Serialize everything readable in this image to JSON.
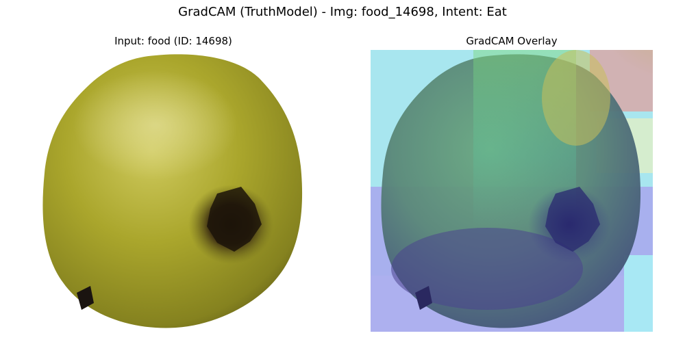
{
  "figure": {
    "title": "GradCAM (TruthModel) - Img: food_14698, Intent: Eat"
  },
  "panels": [
    {
      "title": "Input: food (ID: 14698)",
      "image": "yellow-fruit-photo"
    },
    {
      "title": "GradCAM Overlay",
      "image": "gradcam-heatmap-overlay"
    }
  ],
  "colors": {
    "fruit_body": "#a7a62a",
    "fruit_highlight": "#c9c65a",
    "fruit_shadow": "#6e6a1c",
    "blossom_end": "#2a1c0c",
    "heat_low": "#4b45c7",
    "heat_mid": "#58d6a0",
    "heat_high": "#e0503c",
    "heat_cyan": "#a8f0f0"
  }
}
